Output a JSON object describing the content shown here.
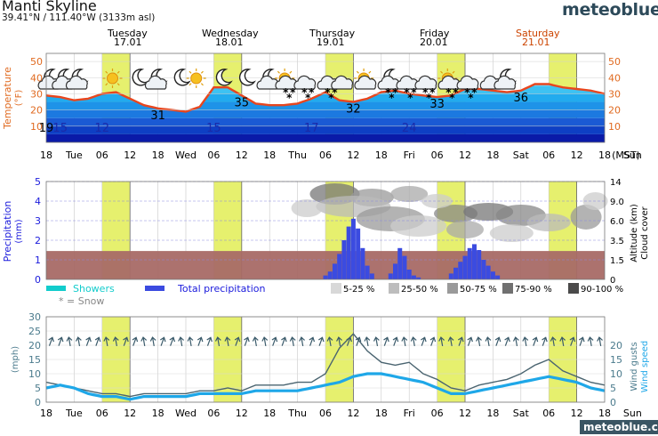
{
  "header": {
    "location": "Manti Skyline",
    "coords": "39.41°N / 111.40°W (3133m asl)",
    "brand": "meteoblue",
    "footer_brand": "meteoblue.com"
  },
  "days": [
    {
      "name": "Tuesday",
      "date": "17.01",
      "color": "#000000"
    },
    {
      "name": "Wednesday",
      "date": "18.01",
      "color": "#000000"
    },
    {
      "name": "Thursday",
      "date": "19.01",
      "color": "#000000"
    },
    {
      "name": "Friday",
      "date": "20.01",
      "color": "#000000"
    },
    {
      "name": "Saturday",
      "date": "21.01",
      "color": "#cc4400"
    }
  ],
  "time_axis": {
    "labels": [
      "18",
      "Tue",
      "06",
      "12",
      "18",
      "Wed",
      "06",
      "12",
      "18",
      "Thu",
      "06",
      "12",
      "18",
      "Fri",
      "06",
      "12",
      "18",
      "Sat",
      "06",
      "12",
      "18",
      "Sun"
    ],
    "timezone": "(MST)"
  },
  "colors": {
    "temp_line": "#e8461e",
    "day_band": "#e6f06e",
    "precip_bar": "#3b4be0",
    "showers": "#12cccc",
    "below_ground": "#a86a66",
    "wind_speed": "#1ea7e8",
    "wind_gust": "#4a6470",
    "axis_temp": "#e06a20",
    "axis_precip": "#1a1adc",
    "axis_wind": "#4a7a8c"
  },
  "chart_data": [
    {
      "type": "area",
      "name": "temperature",
      "ylabel": "Temperature",
      "yunit": "(°F)",
      "ylim": [
        0,
        55
      ],
      "yticks": [
        10,
        20,
        30,
        40,
        50
      ],
      "time_x_hours": [
        0,
        3,
        6,
        9,
        12,
        15,
        18,
        21,
        24,
        27,
        30,
        33,
        36,
        39,
        42,
        45,
        48,
        51,
        54,
        57,
        60,
        63,
        66,
        69,
        72,
        75,
        78,
        81,
        84,
        87,
        90,
        93,
        96,
        99,
        102,
        105,
        108,
        111,
        114,
        117,
        120
      ],
      "max_temp": [
        29,
        28,
        26,
        27,
        30,
        31,
        27,
        23,
        21,
        20,
        19,
        22,
        34,
        34,
        29,
        24,
        23,
        23,
        24,
        27,
        31,
        26,
        25,
        27,
        31,
        32,
        30,
        29,
        28,
        29,
        33,
        33,
        32,
        31,
        32,
        36,
        36,
        34,
        33,
        32,
        30
      ],
      "labels_high": [
        {
          "h": 24,
          "value": "31"
        },
        {
          "h": 42,
          "value": "35"
        },
        {
          "h": 66,
          "value": "32"
        },
        {
          "h": 84,
          "value": "33"
        },
        {
          "h": 102,
          "value": "36"
        }
      ],
      "labels_low": [
        {
          "h": 0,
          "value": "19"
        },
        {
          "h": 3,
          "value": "15"
        },
        {
          "h": 12,
          "value": "12"
        },
        {
          "h": 36,
          "value": "15"
        },
        {
          "h": 57,
          "value": "17"
        },
        {
          "h": 78,
          "value": "24"
        }
      ],
      "weather_icons": [
        {
          "h": 1,
          "icon": "moon-cloud-icon"
        },
        {
          "h": 4,
          "icon": "moon-cloud-icon"
        },
        {
          "h": 7,
          "icon": "moon-cloud-icon"
        },
        {
          "h": 15,
          "icon": "sun-icon"
        },
        {
          "h": 20,
          "icon": "moon-icon"
        },
        {
          "h": 24,
          "icon": "moon-cloud-icon"
        },
        {
          "h": 29,
          "icon": "moon-icon"
        },
        {
          "h": 33,
          "icon": "sun-icon"
        },
        {
          "h": 38,
          "icon": "moon-icon"
        },
        {
          "h": 43,
          "icon": "moon-icon"
        },
        {
          "h": 48,
          "icon": "moon-cloud-icon"
        },
        {
          "h": 52,
          "icon": "sun-cloud-snow-icon"
        },
        {
          "h": 56,
          "icon": "cloud-snow-icon"
        },
        {
          "h": 61,
          "icon": "cloud-snow-icon"
        },
        {
          "h": 64,
          "icon": "cloud-icon"
        },
        {
          "h": 69,
          "icon": "sun-cloud-icon"
        },
        {
          "h": 74,
          "icon": "moon-cloud-snow-icon"
        },
        {
          "h": 78,
          "icon": "cloud-snow-icon"
        },
        {
          "h": 82,
          "icon": "cloud-snow-icon"
        },
        {
          "h": 87,
          "icon": "sun-cloud-snow-icon"
        },
        {
          "h": 91,
          "icon": "cloud-snow-icon"
        },
        {
          "h": 96,
          "icon": "cloud-icon"
        },
        {
          "h": 99,
          "icon": "moon-cloud-icon"
        }
      ]
    },
    {
      "type": "bar",
      "name": "precipitation",
      "ylabel": "Precipitation",
      "yunit": "(mm)",
      "ylim": [
        0,
        5
      ],
      "yticks": [
        0,
        1,
        2,
        3,
        4,
        5
      ],
      "right_axis": {
        "labels": [
          "0",
          "1.5",
          "3.5",
          "6.0",
          "9.0",
          "14"
        ],
        "title": "Altitude (km)",
        "title2": "Cloud cover"
      },
      "time_x_hours": [
        60,
        61,
        62,
        63,
        64,
        65,
        66,
        67,
        68,
        69,
        70,
        74,
        75,
        76,
        77,
        78,
        79,
        80,
        87,
        88,
        89,
        90,
        91,
        92,
        93,
        94,
        95,
        96,
        97
      ],
      "total_precipitation": [
        0.2,
        0.4,
        0.8,
        1.3,
        2.0,
        2.7,
        3.1,
        2.6,
        1.6,
        0.7,
        0.3,
        0.3,
        0.8,
        1.6,
        1.2,
        0.5,
        0.2,
        0.1,
        0.3,
        0.6,
        0.9,
        1.2,
        1.6,
        1.8,
        1.5,
        1.0,
        0.7,
        0.4,
        0.2
      ],
      "legend": [
        "Showers",
        "Total precipitation",
        "* = Snow"
      ],
      "cloud_legend": [
        "5-25 %",
        "25-50 %",
        "50-75 %",
        "75-90 %",
        "90-100 %"
      ]
    },
    {
      "type": "line",
      "name": "wind",
      "ylabel": "(mph)",
      "ylim": [
        0,
        30
      ],
      "yticks": [
        0,
        5,
        10,
        15,
        20,
        25,
        30
      ],
      "right_axis": {
        "labels": [
          "0",
          "5",
          "10",
          "15",
          "20"
        ],
        "title": "Wind gusts",
        "title2": "Wind speed"
      },
      "time_x_hours": [
        0,
        3,
        6,
        9,
        12,
        15,
        18,
        21,
        24,
        27,
        30,
        33,
        36,
        39,
        42,
        45,
        48,
        51,
        54,
        57,
        60,
        63,
        66,
        69,
        72,
        75,
        78,
        81,
        84,
        87,
        90,
        93,
        96,
        99,
        102,
        105,
        108,
        111,
        114,
        117,
        120
      ],
      "wind_speed": [
        5,
        6,
        5,
        3,
        2,
        2,
        1,
        2,
        2,
        2,
        2,
        3,
        3,
        3,
        3,
        4,
        4,
        4,
        4,
        5,
        6,
        7,
        9,
        10,
        10,
        9,
        8,
        7,
        5,
        3,
        3,
        4,
        5,
        6,
        7,
        8,
        9,
        8,
        7,
        5,
        4
      ],
      "wind_gusts": [
        7,
        6,
        5,
        4,
        3,
        3,
        2,
        3,
        3,
        3,
        3,
        4,
        4,
        5,
        4,
        6,
        6,
        6,
        7,
        7,
        10,
        19,
        24,
        18,
        14,
        13,
        14,
        10,
        8,
        5,
        4,
        6,
        7,
        8,
        10,
        13,
        15,
        11,
        9,
        7,
        6
      ]
    }
  ]
}
